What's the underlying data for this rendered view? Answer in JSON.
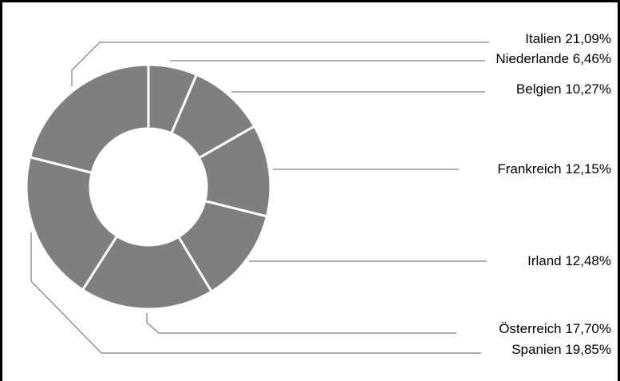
{
  "chart_data": {
    "type": "pie",
    "variant": "donut",
    "slice_color": "#7f7f7f",
    "separator_color": "#ffffff",
    "leader_color": "#7f7f7f",
    "slices": [
      {
        "label": "Niederlande",
        "value": 6.46,
        "display": "Niederlande 6,46%"
      },
      {
        "label": "Belgien",
        "value": 10.27,
        "display": "Belgien 10,27%"
      },
      {
        "label": "Frankreich",
        "value": 12.15,
        "display": "Frankreich 12,15%"
      },
      {
        "label": "Irland",
        "value": 12.48,
        "display": "Irland 12,48%"
      },
      {
        "label": "Österreich",
        "value": 17.7,
        "display": "Österreich 17,70%"
      },
      {
        "label": "Spanien",
        "value": 19.85,
        "display": "Spanien 19,85%"
      },
      {
        "label": "Italien",
        "value": 21.09,
        "display": "Italien 21,09%"
      }
    ]
  }
}
